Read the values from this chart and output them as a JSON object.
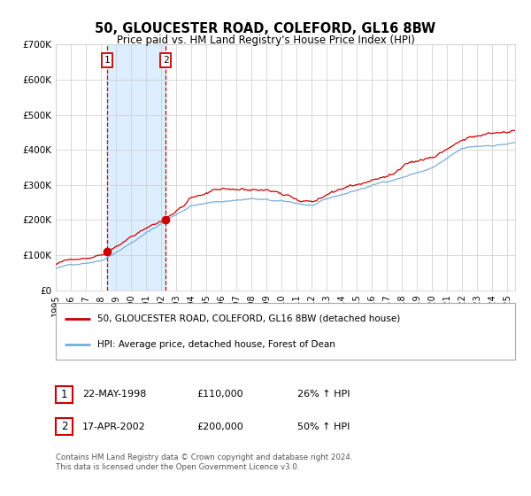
{
  "title": "50, GLOUCESTER ROAD, COLEFORD, GL16 8BW",
  "subtitle": "Price paid vs. HM Land Registry's House Price Index (HPI)",
  "legend_line1": "50, GLOUCESTER ROAD, COLEFORD, GL16 8BW (detached house)",
  "legend_line2": "HPI: Average price, detached house, Forest of Dean",
  "transaction1_date": "22-MAY-1998",
  "transaction1_price": 110000,
  "transaction1_hpi": "26% ↑ HPI",
  "transaction2_date": "17-APR-2002",
  "transaction2_price": 200000,
  "transaction2_hpi": "50% ↑ HPI",
  "footer": "Contains HM Land Registry data © Crown copyright and database right 2024.\nThis data is licensed under the Open Government Licence v3.0.",
  "red_color": "#cc0000",
  "blue_color": "#7aaed6",
  "shade_color": "#ddeeff",
  "grid_color": "#cccccc",
  "background_color": "#ffffff",
  "xmin": 1995.0,
  "xmax": 2025.5,
  "ymin": 0,
  "ymax": 700000,
  "t1_x": 1998.39,
  "t2_x": 2002.29
}
